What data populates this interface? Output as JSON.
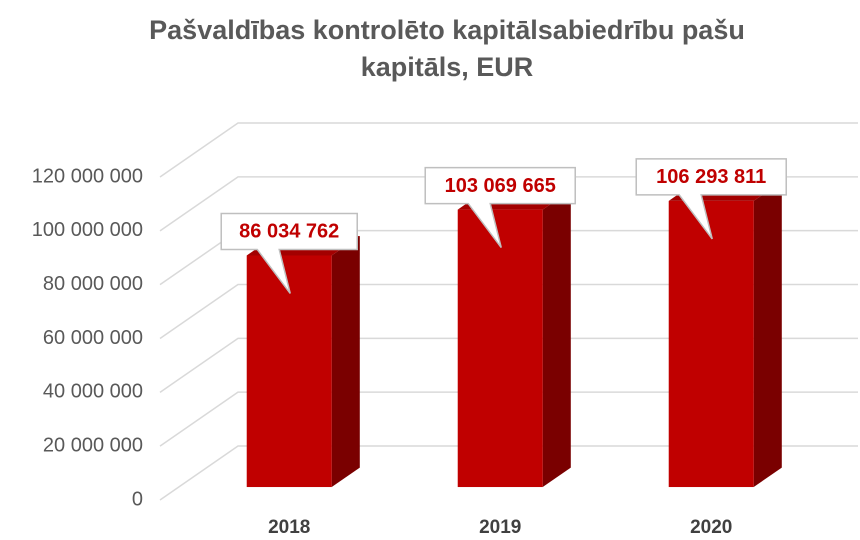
{
  "chart_data": {
    "type": "bar3d",
    "title": "Pašvaldības kontrolēto kapitālsabiedrību pašu kapitāls, EUR",
    "categories": [
      "2018",
      "2019",
      "2020"
    ],
    "values": [
      86034762,
      103069665,
      106293811
    ],
    "value_labels": [
      "86 034 762",
      "103 069 665",
      "106 293 811"
    ],
    "color": "#c00000",
    "ylim": [
      0,
      120000000
    ],
    "yticks": [
      0,
      {
        "value": 20000000,
        "label": "20 000 000"
      },
      {
        "value": 40000000,
        "label": "40 000 000"
      },
      {
        "value": 60000000,
        "label": "60 000 000"
      },
      {
        "value": 80000000,
        "label": "80 000 000"
      },
      {
        "value": 100000000,
        "label": "100 000 000"
      },
      {
        "value": 120000000,
        "label": "120 000 000"
      }
    ],
    "grid": true
  }
}
